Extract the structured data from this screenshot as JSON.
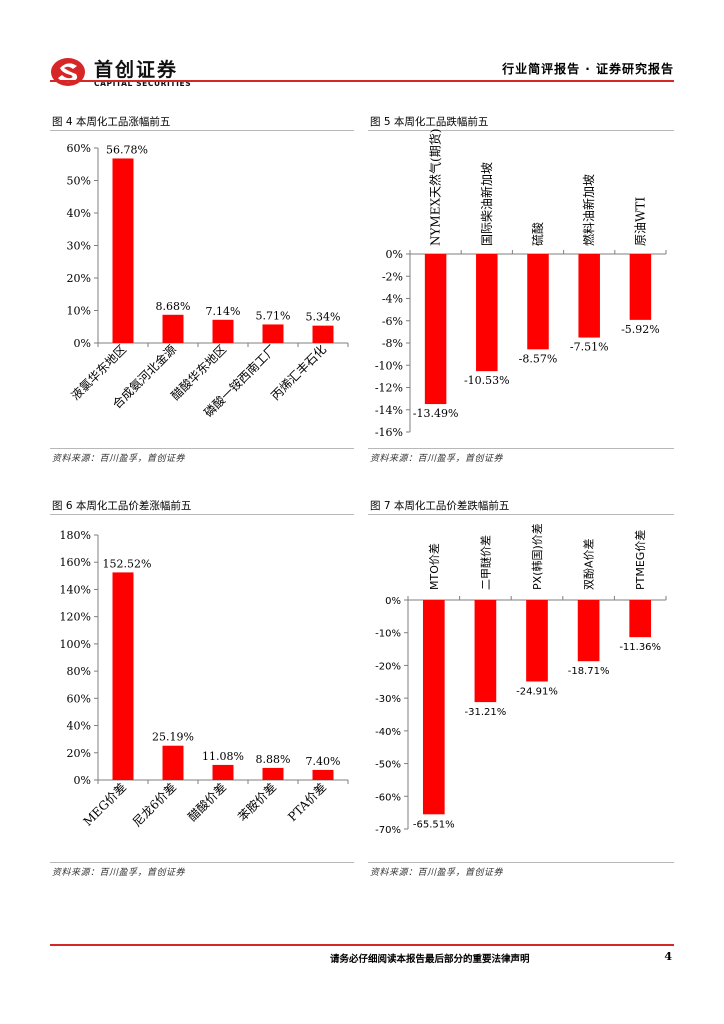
{
  "header": {
    "brand_cn": "首创证券",
    "brand_en": "CAPITAL SECURITIES",
    "report_type": "行业简评报告 · 证券研究报告",
    "brand_color": "#d72626"
  },
  "figures": [
    {
      "title": "图 4 本周化工品涨幅前五",
      "source": "资料来源：百川盈孚，首创证券"
    },
    {
      "title": "图 5 本周化工品跌幅前五",
      "source": "资料来源：百川盈孚，首创证券"
    },
    {
      "title": "图 6 本周化工品价差涨幅前五",
      "source": "资料来源：百川盈孚，首创证券"
    },
    {
      "title": "图 7 本周化工品价差跌幅前五",
      "source": "资料来源：百川盈孚，首创证券"
    }
  ],
  "chart_data": [
    {
      "type": "bar",
      "categories": [
        "液氯华东地区",
        "合成氨河北金源",
        "醋酸华东地区",
        "磷酸一铵西南工厂",
        "丙烯汇丰石化"
      ],
      "values": [
        56.78,
        8.68,
        7.14,
        5.71,
        5.34
      ],
      "data_labels": [
        "56.78%",
        "8.68%",
        "7.14%",
        "5.71%",
        "5.34%"
      ],
      "ylim": [
        0,
        60
      ],
      "yticks": [
        0,
        10,
        20,
        30,
        40,
        50,
        60
      ],
      "ytick_labels": [
        "0%",
        "10%",
        "20%",
        "30%",
        "40%",
        "50%",
        "60%"
      ],
      "color": "#ff0000"
    },
    {
      "type": "bar",
      "categories": [
        "NYMEX天然气(期货)",
        "国际柴油新加坡",
        "硫酸",
        "燃料油新加坡",
        "原油WTI"
      ],
      "values": [
        -13.49,
        -10.53,
        -8.57,
        -7.51,
        -5.92
      ],
      "data_labels": [
        "-13.49%",
        "-10.53%",
        "-8.57%",
        "-7.51%",
        "-5.92%"
      ],
      "ylim": [
        -16,
        0
      ],
      "yticks": [
        0,
        -2,
        -4,
        -6,
        -8,
        -10,
        -12,
        -14,
        -16
      ],
      "ytick_labels": [
        "0%",
        "-2%",
        "-4%",
        "-6%",
        "-8%",
        "-10%",
        "-12%",
        "-14%",
        "-16%"
      ],
      "color": "#ff0000"
    },
    {
      "type": "bar",
      "categories": [
        "MEG价差",
        "尼龙6价差",
        "醋酸价差",
        "苯胺价差",
        "PTA价差"
      ],
      "values": [
        152.52,
        25.19,
        11.08,
        8.88,
        7.4
      ],
      "data_labels": [
        "152.52%",
        "25.19%",
        "11.08%",
        "8.88%",
        "7.40%"
      ],
      "ylim": [
        0,
        180
      ],
      "yticks": [
        0,
        20,
        40,
        60,
        80,
        100,
        120,
        140,
        160,
        180
      ],
      "ytick_labels": [
        "0%",
        "20%",
        "40%",
        "60%",
        "80%",
        "100%",
        "120%",
        "140%",
        "160%",
        "180%"
      ],
      "color": "#ff0000"
    },
    {
      "type": "bar",
      "categories": [
        "MTO价差",
        "二甲醚价差",
        "PX(韩国)价差",
        "双酚A价差",
        "PTMEG价差"
      ],
      "values": [
        -65.51,
        -31.21,
        -24.91,
        -18.71,
        -11.36
      ],
      "data_labels": [
        "-65.51%",
        "-31.21%",
        "-24.91%",
        "-18.71%",
        "-11.36%"
      ],
      "ylim": [
        -70,
        0
      ],
      "yticks": [
        0,
        -10,
        -20,
        -30,
        -40,
        -50,
        -60,
        -70
      ],
      "ytick_labels": [
        "0%",
        "-10%",
        "-20%",
        "-30%",
        "-40%",
        "-50%",
        "-60%",
        "-70%"
      ],
      "color": "#ff0000"
    }
  ],
  "footer": {
    "note": "请务必仔细阅读本报告最后部分的重要法律声明",
    "page": "4"
  }
}
